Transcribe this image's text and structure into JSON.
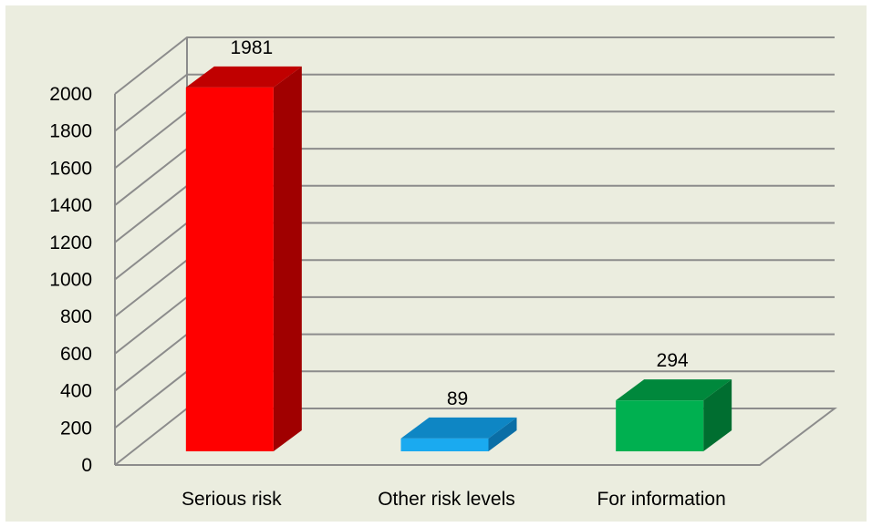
{
  "chart_data": {
    "type": "bar",
    "style": "3d-column",
    "categories": [
      "Serious risk",
      "Other risk levels",
      "For information"
    ],
    "values": [
      1981,
      89,
      294
    ],
    "data_labels": [
      "1981",
      "89",
      "294"
    ],
    "title": "",
    "xlabel": "",
    "ylabel": "",
    "ylim": [
      0,
      2000
    ],
    "y_ticks": [
      0,
      200,
      400,
      600,
      800,
      1000,
      1200,
      1400,
      1600,
      1800,
      2000
    ],
    "grid": true,
    "legend": "none",
    "colors": {
      "background": "#ebeddf",
      "grid": "#8c8c8c",
      "bars": [
        {
          "front": "#ff0000",
          "top": "#c00000",
          "side": "#a00000"
        },
        {
          "front": "#1aaaf0",
          "top": "#0e86c4",
          "side": "#0a6ea6"
        },
        {
          "front": "#00b050",
          "top": "#00883c",
          "side": "#006e30"
        }
      ]
    }
  }
}
